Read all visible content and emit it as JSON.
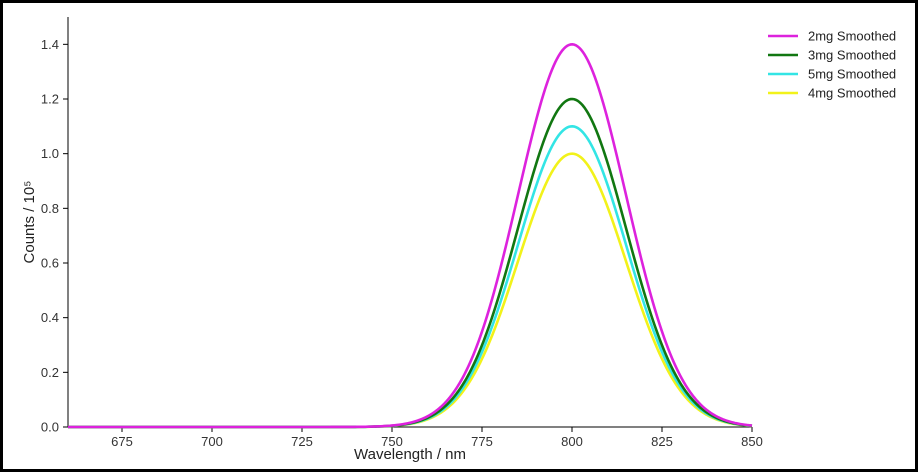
{
  "chart_data": {
    "type": "line",
    "title": "",
    "xlabel": "Wavelength / nm",
    "ylabel": "Counts / 10⁵",
    "xlim": [
      660,
      850
    ],
    "ylim": [
      0,
      1.5
    ],
    "xticks": [
      675,
      700,
      725,
      750,
      775,
      800,
      825,
      850
    ],
    "yticks": [
      "0.0",
      "0.2",
      "0.4",
      "0.6",
      "0.8",
      "1.0",
      "1.2",
      "1.4"
    ],
    "grid": false,
    "legend_position": "top-right",
    "peak_center": 800,
    "peak_sigma": 15,
    "series": [
      {
        "name": "2mg Smoothed",
        "peak": 1.4,
        "color": "#dd22dd"
      },
      {
        "name": "3mg Smoothed",
        "peak": 1.2,
        "color": "#117711"
      },
      {
        "name": "5mg Smoothed",
        "peak": 1.1,
        "color": "#33e5e5"
      },
      {
        "name": "4mg Smoothed",
        "peak": 1.0,
        "color": "#f2f21a"
      }
    ]
  }
}
